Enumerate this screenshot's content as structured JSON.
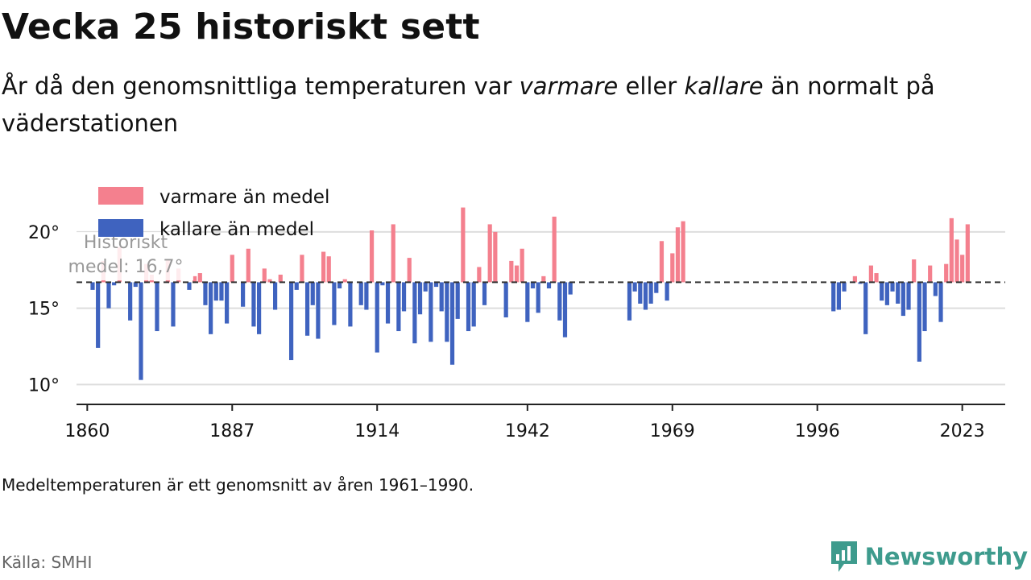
{
  "title": "Vecka 25 historiskt sett",
  "subtitle": {
    "part1": "År då den genomsnittliga temperaturen var ",
    "warm_word": "varmare",
    "part2": " eller ",
    "cold_word": "kallare",
    "part3": " än normalt på väderstationen"
  },
  "note": "Medeltemperaturen är ett genomsnitt av åren 1961–1990.",
  "source": "Källa: SMHI",
  "brand": "Newsworthy",
  "colors": {
    "warm": "#f4808e",
    "cold": "#3f63bf",
    "grid": "#dddddd",
    "axis": "#222222",
    "brand": "#3e9b8d"
  },
  "chart_data": {
    "type": "bar",
    "baseline": 16.7,
    "baseline_label_1": "Historiskt",
    "baseline_label_2": "medel: 16,7°",
    "legend": [
      {
        "name": "varmare än medel",
        "color": "#f4808e"
      },
      {
        "name": "kallare än medel",
        "color": "#3f63bf"
      }
    ],
    "legend_position": "top-left",
    "ylim": [
      8.7,
      22
    ],
    "yticks": [
      10,
      15,
      20
    ],
    "ytick_labels": [
      "10°",
      "15°",
      "20°"
    ],
    "xlim": [
      1858,
      2031
    ],
    "xticks": [
      1860,
      1887,
      1914,
      1942,
      1969,
      1996,
      2023
    ],
    "grid": true,
    "years": [
      1861,
      1862,
      1863,
      1864,
      1865,
      1866,
      1867,
      1868,
      1869,
      1870,
      1871,
      1872,
      1873,
      1874,
      1875,
      1876,
      1877,
      1878,
      1879,
      1880,
      1881,
      1882,
      1883,
      1884,
      1885,
      1886,
      1887,
      1888,
      1889,
      1890,
      1891,
      1892,
      1893,
      1894,
      1895,
      1896,
      1897,
      1898,
      1899,
      1900,
      1901,
      1902,
      1903,
      1904,
      1905,
      1906,
      1907,
      1908,
      1909,
      1910,
      1911,
      1912,
      1913,
      1914,
      1915,
      1916,
      1917,
      1918,
      1919,
      1920,
      1921,
      1922,
      1923,
      1924,
      1925,
      1926,
      1927,
      1928,
      1929,
      1930,
      1931,
      1932,
      1933,
      1934,
      1935,
      1936,
      1937,
      1938,
      1939,
      1940,
      1941,
      1942,
      1943,
      1944,
      1945,
      1946,
      1947,
      1948,
      1949,
      1950,
      1961,
      1962,
      1963,
      1964,
      1965,
      1966,
      1967,
      1968,
      1969,
      1970,
      1971,
      1999,
      2000,
      2001,
      2003,
      2004,
      2005,
      2006,
      2007,
      2008,
      2009,
      2010,
      2011,
      2012,
      2013,
      2014,
      2015,
      2016,
      2017,
      2018,
      2019,
      2020,
      2021,
      2022,
      2023,
      2024
    ],
    "values": [
      16.2,
      12.4,
      18.1,
      15.0,
      16.5,
      19.0,
      16.7,
      14.2,
      16.4,
      10.3,
      17.9,
      17.2,
      13.5,
      16.7,
      18.2,
      13.8,
      17.6,
      16.7,
      16.2,
      17.1,
      17.3,
      15.2,
      13.3,
      15.5,
      15.5,
      14.0,
      18.5,
      16.7,
      15.1,
      18.9,
      13.8,
      13.3,
      17.6,
      16.9,
      14.9,
      17.2,
      16.7,
      11.6,
      16.2,
      18.5,
      13.2,
      15.2,
      13.0,
      18.7,
      18.4,
      13.9,
      16.3,
      16.9,
      13.8,
      16.7,
      15.2,
      14.9,
      20.1,
      12.1,
      16.5,
      14.0,
      20.5,
      13.5,
      14.8,
      18.3,
      12.7,
      14.6,
      16.1,
      12.8,
      16.4,
      14.8,
      12.8,
      11.3,
      14.3,
      21.6,
      13.5,
      13.8,
      17.7,
      15.2,
      20.5,
      20.0,
      16.7,
      14.4,
      18.1,
      17.8,
      18.9,
      14.1,
      16.3,
      14.7,
      17.1,
      16.3,
      21.0,
      14.2,
      13.1,
      15.9,
      14.2,
      16.1,
      15.3,
      14.9,
      15.3,
      16.0,
      19.4,
      15.5,
      18.6,
      20.3,
      20.7,
      14.8,
      14.9,
      16.1,
      17.1,
      16.6,
      13.3,
      17.8,
      17.3,
      15.5,
      15.2,
      16.1,
      15.3,
      14.5,
      14.9,
      18.2,
      11.5,
      13.5,
      17.8,
      15.8,
      14.1,
      17.9,
      20.9,
      19.5,
      18.5,
      20.5
    ]
  }
}
